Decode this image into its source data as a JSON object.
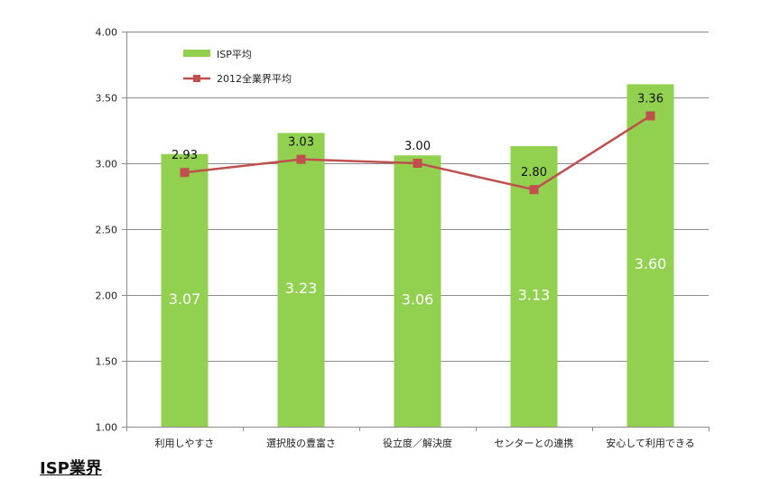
{
  "chart_data": {
    "type": "bar",
    "categories": [
      "利用しやすさ",
      "選択肢の豊富さ",
      "役立度／解決度",
      "センターとの連携",
      "安心して利用できる"
    ],
    "series": [
      {
        "name": "ISP平均",
        "kind": "bar",
        "values": [
          3.07,
          3.23,
          3.06,
          3.13,
          3.6
        ],
        "color": "#92d050"
      },
      {
        "name": "2012全業界平均",
        "kind": "line",
        "values": [
          2.93,
          3.03,
          3.0,
          2.8,
          3.36
        ],
        "color": "#c0504d"
      }
    ],
    "ylim": [
      1.0,
      4.0
    ],
    "yticks": [
      "1.00",
      "1.50",
      "2.00",
      "2.50",
      "3.00",
      "3.50",
      "4.00"
    ],
    "bar_labels": [
      "3.07",
      "3.23",
      "3.06",
      "3.13",
      "3.60"
    ],
    "line_labels": [
      "2.93",
      "3.03",
      "3.00",
      "2.80",
      "3.36"
    ],
    "grid": true,
    "legend_position": "top-left"
  },
  "caption": "ISP業界"
}
